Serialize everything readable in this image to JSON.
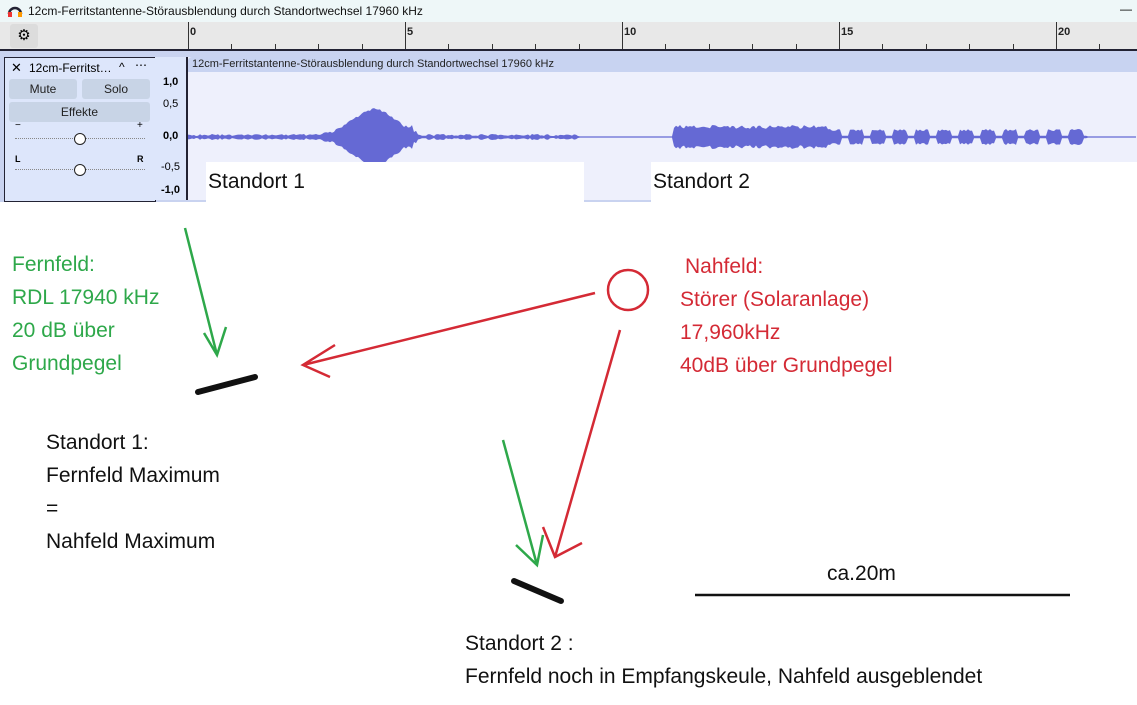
{
  "window": {
    "title": "12cm-Ferritstantenne-Störausblendung durch Standortwechsel 17960 kHz",
    "minimize_label": "—"
  },
  "ruler": {
    "labels": [
      "0",
      "5",
      "10",
      "15",
      "20"
    ],
    "icon": "gear-icon"
  },
  "track": {
    "name": "12cm-Ferritst…",
    "mute": "Mute",
    "solo": "Solo",
    "effects": "Effekte",
    "gain_min": "−",
    "gain_max": "+",
    "pan_left": "L",
    "pan_right": "R",
    "gain_level": 0.5,
    "pan_level": 0.5,
    "scale": [
      "1,0",
      "0,5",
      "0,0",
      "-0,5",
      "-1,0"
    ],
    "clip_title": "12cm-Ferritstantenne-Störausblendung durch Standortwechsel 17960 kHz",
    "wave_color": "#6569d4"
  },
  "annotations": {
    "standort1_label": "Standort 1",
    "standort2_label": "Standort 2",
    "fernfeld": [
      "Fernfeld:",
      "RDL 17940 kHz",
      "20 dB über",
      "Grundpegel"
    ],
    "nahfeld": [
      "Nahfeld:",
      "Störer (Solaranlage)",
      "17,960kHz",
      "40dB über Grundpegel"
    ],
    "standort1": [
      "Standort 1:",
      "Fernfeld Maximum",
      "=",
      "Nahfeld Maximum"
    ],
    "standort2": [
      "Standort 2 :",
      "Fernfeld noch in Empfangskeule, Nahfeld ausgeblendet"
    ],
    "scale_label": "ca.20m",
    "colors": {
      "fernfeld": "#2ea84a",
      "nahfeld": "#d42a35"
    }
  }
}
